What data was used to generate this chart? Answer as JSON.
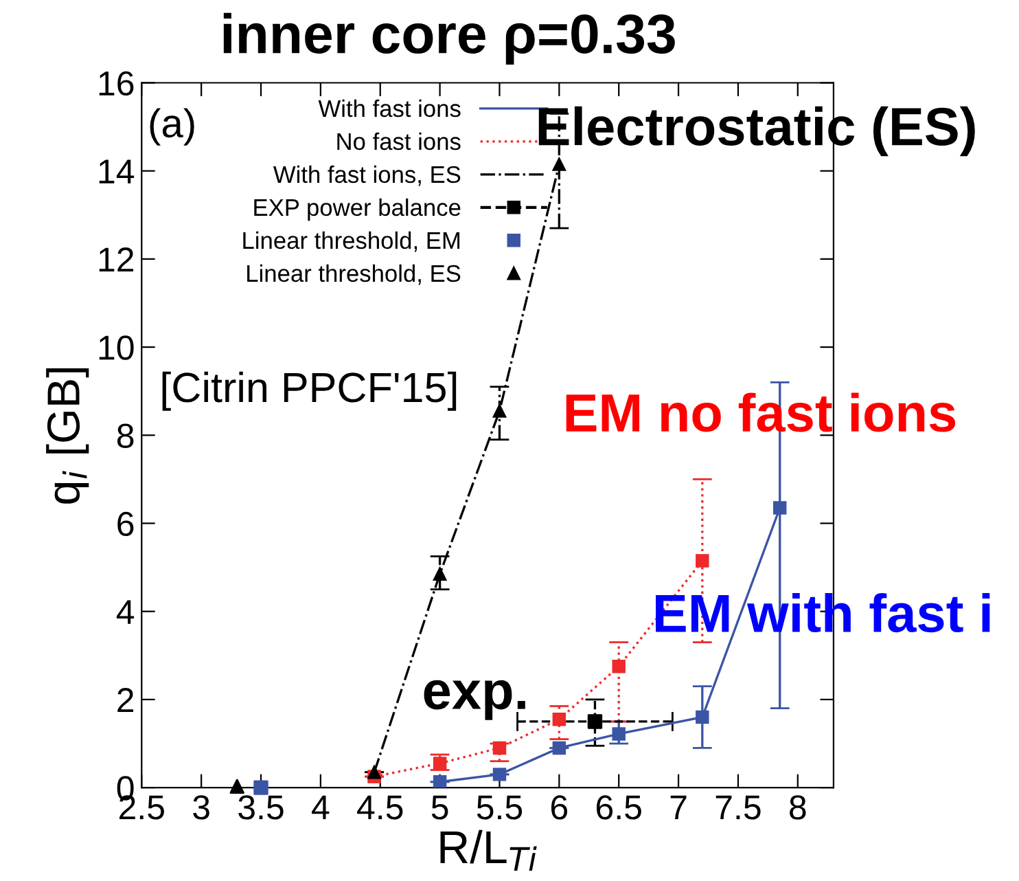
{
  "chart_data": {
    "type": "line",
    "title": "inner core ρ=0.33",
    "xlabel": "R/L$_{Ti}$",
    "ylabel": "q$_{i}$ [GB]",
    "xlim": [
      2.5,
      8.3
    ],
    "xticks": [
      2.5,
      3,
      3.5,
      4,
      4.5,
      5,
      5.5,
      6,
      6.5,
      7,
      7.5,
      8
    ],
    "ylim": [
      0,
      16
    ],
    "yticks": [
      0,
      2,
      4,
      6,
      8,
      10,
      12,
      14,
      16
    ],
    "grid": false,
    "legend": "top left",
    "series": [
      {
        "name": "With fast ions",
        "color": "#3b55a5",
        "marker": "square",
        "line_style": "solid",
        "x": [
          5.0,
          5.5,
          6.0,
          6.5,
          7.2,
          7.85
        ],
        "values": [
          0.13,
          0.3,
          0.9,
          1.22,
          1.6,
          6.35
        ],
        "errors": [
          null,
          null,
          null,
          [
            1.0,
            1.5
          ],
          [
            0.9,
            2.3
          ],
          [
            1.8,
            9.2
          ]
        ]
      },
      {
        "name": "No fast ions",
        "color": "#ee2a2a",
        "marker": "square",
        "line_style": "dotted",
        "x": [
          4.45,
          5.0,
          5.5,
          6.0,
          6.5,
          7.2
        ],
        "values": [
          0.25,
          0.55,
          0.9,
          1.55,
          2.75,
          5.15
        ],
        "errors": [
          null,
          [
            0.4,
            0.75
          ],
          [
            0.6,
            1.0
          ],
          [
            1.1,
            1.85
          ],
          [
            1.5,
            3.3
          ],
          [
            3.3,
            7.0
          ]
        ]
      },
      {
        "name": "With fast ions, ES",
        "color": "#000000",
        "marker": "triangle",
        "line_style": "dashdot",
        "x": [
          4.45,
          5.0,
          5.5,
          6.0
        ],
        "values": [
          0.35,
          4.85,
          8.55,
          14.15
        ],
        "errors": [
          null,
          [
            4.5,
            5.25
          ],
          [
            7.9,
            9.1
          ],
          [
            12.7,
            15.3
          ]
        ]
      },
      {
        "name": "EXP power balance",
        "type": "scatter",
        "color": "#000000",
        "marker": "square",
        "line_style": "dashed",
        "x": [
          6.3
        ],
        "values": [
          1.5
        ],
        "errors": [
          [
            0.95,
            2.0
          ]
        ],
        "xerrors": [
          [
            5.65,
            6.95
          ]
        ]
      },
      {
        "name": "Linear threshold, EM",
        "type": "scatter",
        "color": "#3b55a5",
        "marker": "square",
        "x": [
          3.5
        ],
        "values": [
          0.0
        ]
      },
      {
        "name": "Linear threshold, ES",
        "type": "scatter",
        "color": "#000000",
        "marker": "triangle",
        "x": [
          3.3
        ],
        "values": [
          0.03
        ]
      }
    ],
    "annotations": [
      "(a)",
      "Electrostatic (ES)",
      "[Citrin PPCF'15]",
      "EM no fast ions",
      "EM with fast i",
      "exp."
    ]
  }
}
